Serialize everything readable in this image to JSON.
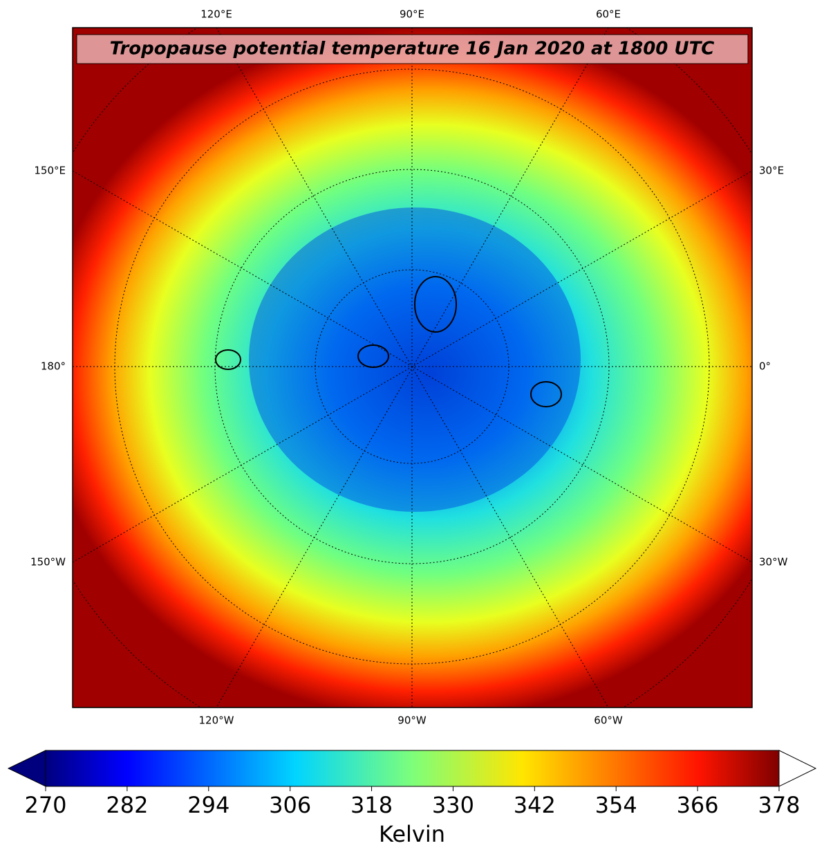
{
  "map": {
    "title": "Tropopause potential temperature 16 Jan 2020 at 1800 UTC",
    "top_labels": [
      "120°E",
      "90°E",
      "60°E"
    ],
    "bottom_labels": [
      "120°W",
      "90°W",
      "60°W"
    ],
    "left_labels": [
      "150°E",
      "180°",
      "150°W"
    ],
    "right_labels": [
      "30°E",
      "0°",
      "30°W"
    ]
  },
  "colorbar": {
    "lim": [
      270,
      378
    ],
    "ticks": [
      270,
      282,
      294,
      306,
      318,
      330,
      342,
      354,
      366,
      378
    ],
    "label": "Kelvin"
  }
}
